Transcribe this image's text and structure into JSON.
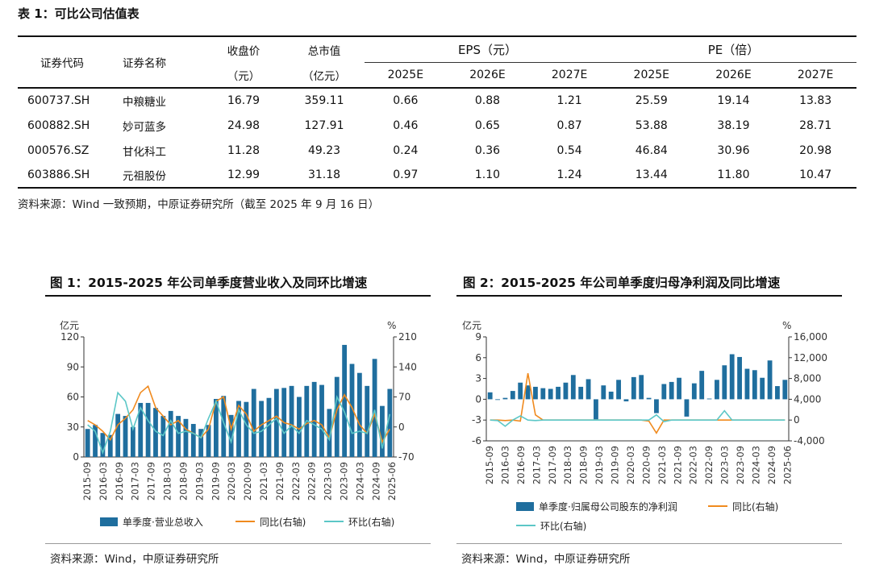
{
  "table": {
    "title": "表 1：可比公司估值表",
    "headers": {
      "code": "证券代码",
      "name": "证券名称",
      "close": "收盘价",
      "close_unit": "（元）",
      "mktcap": "总市值",
      "mktcap_unit": "（亿元）",
      "eps": "EPS（元）",
      "pe": "PE（倍）",
      "years": [
        "2025E",
        "2026E",
        "2027E"
      ]
    },
    "rows": [
      {
        "code": "600737.SH",
        "name": "中粮糖业",
        "close": "16.79",
        "mktcap": "359.11",
        "eps": [
          "0.66",
          "0.88",
          "1.21"
        ],
        "pe": [
          "25.59",
          "19.14",
          "13.83"
        ]
      },
      {
        "code": "600882.SH",
        "name": "妙可蓝多",
        "close": "24.98",
        "mktcap": "127.91",
        "eps": [
          "0.46",
          "0.65",
          "0.87"
        ],
        "pe": [
          "53.88",
          "38.19",
          "28.71"
        ]
      },
      {
        "code": "000576.SZ",
        "name": "甘化科工",
        "close": "11.28",
        "mktcap": "49.23",
        "eps": [
          "0.24",
          "0.36",
          "0.54"
        ],
        "pe": [
          "46.84",
          "30.96",
          "20.98"
        ]
      },
      {
        "code": "603886.SH",
        "name": "元祖股份",
        "close": "12.99",
        "mktcap": "31.18",
        "eps": [
          "0.97",
          "1.10",
          "1.24"
        ],
        "pe": [
          "13.44",
          "11.80",
          "10.47"
        ]
      }
    ],
    "source": "资料来源：Wind 一致预期，中原证券研究所（截至 2025 年 9 月 16 日）"
  },
  "colors": {
    "bar": "#1f6e9e",
    "yoy": "#f08a1e",
    "qoq": "#5cc7c7",
    "axis": "#333333"
  },
  "chart_data": [
    {
      "type": "bar",
      "title": "图 1：2015-2025 年公司单季度营业收入及同环比增速",
      "left_unit": "亿元",
      "right_unit": "%",
      "ylim_left": [
        0,
        120
      ],
      "ylim_right": [
        -70,
        210
      ],
      "left_ticks": [
        "0",
        "30",
        "60",
        "90",
        "120"
      ],
      "right_ticks": [
        "-70",
        "0",
        "70",
        "140",
        "210"
      ],
      "x_tick_labels": [
        "2015-09",
        "2016-03",
        "2016-09",
        "2017-03",
        "2017-09",
        "2018-03",
        "2018-09",
        "2019-03",
        "2019-09",
        "2020-03",
        "2020-09",
        "2021-03",
        "2021-09",
        "2022-03",
        "2022-09",
        "2023-03",
        "2023-09",
        "2024-03",
        "2024-09",
        "2025-06"
      ],
      "series": [
        {
          "name": "单季度·营业总收入",
          "axis": "left",
          "kind": "bar",
          "values": [
            28,
            32,
            24,
            22,
            43,
            41,
            30,
            54,
            54,
            49,
            41,
            46,
            41,
            38,
            33,
            28,
            32,
            58,
            61,
            42,
            56,
            55,
            68,
            56,
            59,
            68,
            69,
            71,
            60,
            71,
            75,
            72,
            48,
            80,
            112,
            93,
            84,
            71,
            98,
            51,
            68
          ]
        },
        {
          "name": "同比(右轴)",
          "axis": "right",
          "kind": "line",
          "values": [
            15,
            5,
            -10,
            -30,
            5,
            20,
            40,
            80,
            95,
            45,
            25,
            5,
            15,
            -5,
            -15,
            -25,
            -5,
            60,
            70,
            -5,
            50,
            30,
            -10,
            5,
            15,
            25,
            10,
            5,
            -5,
            8,
            15,
            5,
            -25,
            40,
            75,
            45,
            5,
            -15,
            30,
            -35,
            -5
          ]
        },
        {
          "name": "环比(右轴)",
          "axis": "right",
          "kind": "line",
          "values": [
            5,
            -10,
            -60,
            -10,
            80,
            60,
            -5,
            45,
            15,
            -10,
            -20,
            15,
            -15,
            -10,
            -15,
            -25,
            20,
            60,
            10,
            -35,
            40,
            5,
            -15,
            -10,
            5,
            20,
            -15,
            3,
            -15,
            15,
            5,
            -5,
            -30,
            70,
            35,
            -15,
            -10,
            -15,
            40,
            -50,
            30
          ]
        }
      ],
      "source": "资料来源：Wind，中原证券研究所"
    },
    {
      "type": "bar",
      "title": "图 2：2015-2025 年公司单季度归母净利润及同比增速",
      "left_unit": "亿元",
      "right_unit": "%",
      "ylim_left": [
        -6,
        9
      ],
      "ylim_right": [
        -4000,
        16000
      ],
      "left_ticks": [
        "-6",
        "-3",
        "0",
        "3",
        "6",
        "9"
      ],
      "right_ticks": [
        "-4,000",
        "0",
        "4,000",
        "8,000",
        "12,000",
        "16,000"
      ],
      "x_tick_labels": [
        "2015-09",
        "2016-03",
        "2016-09",
        "2017-03",
        "2017-09",
        "2018-03",
        "2018-09",
        "2019-03",
        "2019-09",
        "2020-03",
        "2020-09",
        "2021-03",
        "2021-09",
        "2022-03",
        "2022-09",
        "2023-03",
        "2023-09",
        "2024-03",
        "2024-09",
        "2025-06"
      ],
      "series": [
        {
          "name": "单季度·归属母公司股东的净利润",
          "axis": "left",
          "kind": "bar",
          "values": [
            1.0,
            -0.1,
            0.2,
            1.2,
            2.4,
            2.0,
            1.8,
            1.6,
            1.5,
            1.8,
            2.4,
            3.5,
            1.8,
            2.9,
            -2.9,
            2.0,
            1.1,
            2.8,
            -0.3,
            3.2,
            3.5,
            0.2,
            -2.0,
            2.2,
            2.5,
            3.1,
            -2.5,
            2.3,
            4.1,
            0.1,
            2.8,
            4.9,
            6.5,
            6.1,
            4.4,
            4.2,
            3.1,
            5.6,
            1.9,
            2.8
          ]
        },
        {
          "name": "同比(右轴)",
          "axis": "right",
          "kind": "line",
          "values": [
            0,
            0,
            -100,
            0,
            -200,
            9000,
            1000,
            0,
            0,
            0,
            0,
            0,
            0,
            0,
            0,
            0,
            0,
            0,
            0,
            0,
            0,
            -200,
            -2500,
            0,
            0,
            0,
            0,
            0,
            0,
            0,
            0,
            0,
            0,
            0,
            0,
            0,
            0,
            0,
            0,
            0
          ]
        },
        {
          "name": "环比(右轴)",
          "axis": "right",
          "kind": "line",
          "values": [
            0,
            -100,
            -1200,
            0,
            800,
            0,
            -100,
            0,
            0,
            0,
            0,
            0,
            0,
            0,
            0,
            0,
            0,
            0,
            0,
            0,
            0,
            0,
            1000,
            -300,
            0,
            0,
            0,
            0,
            0,
            0,
            0,
            1800,
            0,
            0,
            0,
            0,
            0,
            0,
            0,
            0
          ]
        }
      ],
      "source": "资料来源：Wind，中原证券研究所"
    }
  ]
}
